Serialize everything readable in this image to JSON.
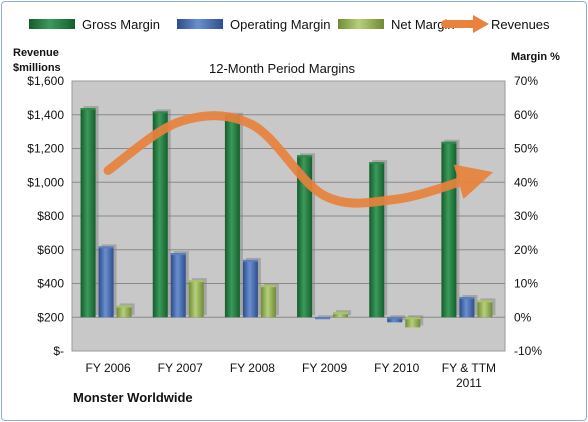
{
  "chart_data": {
    "type": "bar",
    "title": "12-Month Period Margins",
    "company": "Monster Worldwide",
    "y_left_label": "Revenue $millions",
    "y_left_label_lines": [
      "Revenue",
      "$millions"
    ],
    "y_right_label": "Margin %",
    "y_left_ticks": [
      "$-",
      "$200",
      "$400",
      "$600",
      "$800",
      "$1,000",
      "$1,200",
      "$1,400",
      "$1,600"
    ],
    "y_left_range": [
      0,
      1600
    ],
    "y_right_ticks": [
      "-10%",
      "0%",
      "10%",
      "20%",
      "30%",
      "40%",
      "50%",
      "60%",
      "70%"
    ],
    "y_right_range": [
      -10,
      70
    ],
    "categories": [
      "FY 2006",
      "FY 2007",
      "FY 2008",
      "FY 2009",
      "FY 2010",
      "FY & TTM 2011"
    ],
    "category_lines": [
      [
        "FY 2006"
      ],
      [
        "FY 2007"
      ],
      [
        "FY 2008"
      ],
      [
        "FY 2009"
      ],
      [
        "FY 2010"
      ],
      [
        "FY & TTM",
        "2011"
      ]
    ],
    "series": [
      {
        "name": "Gross Margin",
        "axis": "right",
        "values": [
          62,
          61,
          60,
          48,
          46,
          52
        ],
        "color": "#1f7a3c"
      },
      {
        "name": "Operating Margin",
        "axis": "right",
        "values": [
          21,
          19,
          17,
          0,
          -1.5,
          6
        ],
        "color": "#3e63a8"
      },
      {
        "name": "Net Margin",
        "axis": "right",
        "values": [
          3.5,
          11,
          9.5,
          1.5,
          -3,
          5
        ],
        "color": "#8fae4d"
      },
      {
        "name": "Revenues",
        "axis": "left",
        "type": "line",
        "values": [
          1070,
          1360,
          1340,
          920,
          900,
          1020
        ],
        "color": "#e8823c"
      }
    ],
    "legend_position": "top",
    "grid": true,
    "plot_background": "#c8c8c8"
  }
}
